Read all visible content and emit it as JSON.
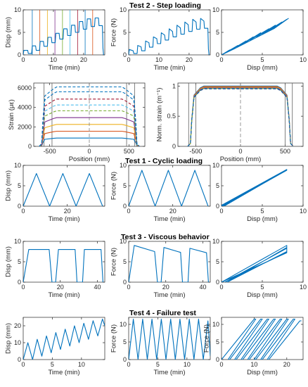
{
  "titles": {
    "test2": "Test 2 - Step loading",
    "test1": "Test 1 - Cyclic loading",
    "test3": "Test 3 - Viscous behavior",
    "test4": "Test 4 - Failure test"
  },
  "colors": {
    "line": "#0072BD",
    "axis": "#262626"
  },
  "chart_data": [
    {
      "id": "t2-disp",
      "type": "line",
      "xlabel": "Time (min)",
      "ylabel": "Disp (mm)",
      "xlim": [
        0,
        27
      ],
      "ylim": [
        0,
        10
      ],
      "xticks": [
        0,
        10,
        20
      ],
      "yticks": [
        0,
        5,
        10
      ],
      "vlines": {
        "x": [
          3,
          5.5,
          8,
          10.5,
          13,
          15.5,
          18,
          20.5,
          23
        ],
        "colors": [
          "#0072BD",
          "#D95319",
          "#EDB120",
          "#7E2F8E",
          "#77AC30",
          "#4DBEEE",
          "#A2142F",
          "#0072BD",
          "#D95319"
        ]
      },
      "series": [
        {
          "x": [
            0,
            0.2,
            1.5,
            1.7,
            2.8,
            3,
            4.1,
            4.3,
            5.4,
            5.6,
            6.7,
            6.9,
            8,
            8.2,
            9.3,
            9.5,
            10.6,
            10.8,
            11.9,
            12.1,
            13.2,
            13.4,
            14.5,
            14.7,
            15.8,
            16,
            17.1,
            17.3,
            18.4,
            18.6,
            19.7,
            19.9,
            21,
            21.2,
            22.3,
            22.5,
            23.6,
            23.8,
            24.9,
            25.1,
            26.2,
            26.4,
            26.6
          ],
          "y": [
            0,
            1,
            1,
            0.3,
            0.3,
            2,
            2,
            1,
            1,
            3,
            3,
            1.9,
            1.9,
            3.9,
            3.9,
            2.7,
            2.7,
            4.8,
            4.8,
            3.5,
            3.5,
            5.8,
            5.8,
            4.3,
            4.3,
            6.6,
            6.6,
            5,
            5,
            7.4,
            7.4,
            5.7,
            5.7,
            8,
            8,
            6.3,
            6.3,
            8.2,
            8.2,
            6.5,
            6.5,
            1.5,
            0
          ]
        }
      ]
    },
    {
      "id": "t2-force",
      "type": "line",
      "xlabel": "Time (min)",
      "ylabel": "Force (N)",
      "xlim": [
        0,
        27
      ],
      "ylim": [
        0,
        10
      ],
      "xticks": [
        0,
        10,
        20
      ],
      "yticks": [
        0,
        5,
        10
      ],
      "series": [
        {
          "x": [
            0,
            0.2,
            1.5,
            1.7,
            2.8,
            3,
            4.1,
            4.3,
            5.4,
            5.6,
            6.7,
            6.9,
            8,
            8.2,
            9.3,
            9.5,
            10.6,
            10.8,
            11.9,
            12.1,
            13.2,
            13.4,
            14.5,
            14.7,
            15.8,
            16,
            17.1,
            17.3,
            18.4,
            18.6,
            19.7,
            19.9,
            21,
            21.2,
            22.3,
            22.5,
            23.6,
            23.8,
            24.9,
            25.1,
            26.2,
            26.4,
            26.6
          ],
          "y": [
            0,
            1.2,
            0.9,
            0.3,
            0.3,
            2.1,
            1.8,
            0.9,
            0.9,
            3.1,
            2.7,
            1.7,
            1.7,
            4,
            3.6,
            2.5,
            2.5,
            4.9,
            4.4,
            3.3,
            3.3,
            5.8,
            5.2,
            4,
            4,
            6.6,
            6,
            4.6,
            4.6,
            7.3,
            6.7,
            5.2,
            5.2,
            7.9,
            7.3,
            5.7,
            5.7,
            8.1,
            7.5,
            5.9,
            5.9,
            1.3,
            0
          ]
        }
      ]
    },
    {
      "id": "t2-fd",
      "type": "line",
      "xlabel": "Disp (mm)",
      "ylabel": "",
      "xlim": [
        0,
        10
      ],
      "ylim": [
        0,
        10
      ],
      "xticks": [
        0,
        5,
        10
      ],
      "yticks": [
        0,
        5,
        10
      ],
      "series": [
        {
          "x": [
            0,
            1,
            0.3,
            2,
            1,
            3,
            1.9,
            3.9,
            2.7,
            4.8,
            3.5,
            5.8,
            4.3,
            6.6,
            5,
            7.4,
            5.7,
            8,
            6.3,
            8.2,
            6.5,
            1.5,
            0
          ],
          "y": [
            0,
            1.1,
            0.3,
            2.1,
            0.9,
            3.1,
            1.7,
            4,
            2.5,
            4.9,
            3.3,
            5.8,
            4,
            6.6,
            4.6,
            7.3,
            5.2,
            7.9,
            5.7,
            8.1,
            5.9,
            1.3,
            0
          ]
        }
      ]
    },
    {
      "id": "strain",
      "type": "line",
      "xlabel": "Position (mm)",
      "ylabel": "Strain (με)",
      "xlim": [
        -700,
        700
      ],
      "ylim": [
        0,
        6500
      ],
      "xticks": [
        -500,
        0,
        500
      ],
      "yticks": [
        0,
        2000,
        4000,
        6000
      ],
      "profile": {
        "plateau_half_width": 450,
        "edge_x": 600
      },
      "vlines": {
        "x": [
          -570,
          -470,
          470,
          570
        ],
        "colors": [
          "#606060",
          "#606060",
          "#606060",
          "#606060"
        ]
      },
      "series": [
        {
          "plateau": 850,
          "color": "#0072BD",
          "dash": false
        },
        {
          "plateau": 1550,
          "color": "#D95319",
          "dash": false
        },
        {
          "plateau": 2250,
          "color": "#EDB120",
          "dash": false
        },
        {
          "plateau": 2950,
          "color": "#7E2F8E",
          "dash": false
        },
        {
          "plateau": 3650,
          "color": "#77AC30",
          "dash": true
        },
        {
          "plateau": 4250,
          "color": "#4DBEEE",
          "dash": true
        },
        {
          "plateau": 4850,
          "color": "#A2142F",
          "dash": true
        },
        {
          "plateau": 5600,
          "color": "#0072BD",
          "dash": true
        },
        {
          "plateau": 6100,
          "color": "#0072BD",
          "dash": true
        }
      ]
    },
    {
      "id": "norm-strain",
      "type": "line",
      "xlabel": "Position (mm)",
      "ylabel": "Norm. strain (m⁻¹)",
      "xlim": [
        -700,
        700
      ],
      "ylim": [
        0,
        1.05
      ],
      "xticks": [
        -500,
        0,
        500
      ],
      "yticks": [
        0,
        0.5,
        1
      ],
      "profile": {
        "plateau_half_width": 450,
        "edge_x": 560
      },
      "vlines": {
        "x": [
          -580,
          -500,
          500,
          580
        ],
        "colors": [
          "#606060",
          "#606060",
          "#606060",
          "#606060"
        ]
      },
      "series": [
        {
          "plateau": 1,
          "color": "#0072BD",
          "dash": false
        },
        {
          "plateau": 0.99,
          "color": "#D95319",
          "dash": false
        },
        {
          "plateau": 0.98,
          "color": "#EDB120",
          "dash": false
        },
        {
          "plateau": 0.97,
          "color": "#7E2F8E",
          "dash": false
        },
        {
          "plateau": 0.96,
          "color": "#77AC30",
          "dash": false
        },
        {
          "plateau": 0.95,
          "color": "#4DBEEE",
          "dash": true
        },
        {
          "plateau": 0.955,
          "color": "#A2142F",
          "dash": true
        },
        {
          "plateau": 0.96,
          "color": "#0072BD",
          "dash": true
        }
      ]
    },
    {
      "id": "t1-disp",
      "type": "line",
      "xlabel": "Time (min)",
      "ylabel": "Disp (mm)",
      "xlim": [
        0,
        37
      ],
      "ylim": [
        0,
        10
      ],
      "xticks": [
        0,
        20
      ],
      "yticks": [
        0,
        5,
        10
      ],
      "series": [
        {
          "x": [
            0,
            6,
            12,
            18,
            24,
            30,
            36
          ],
          "y": [
            0,
            8,
            0,
            8,
            0,
            8,
            0
          ]
        }
      ]
    },
    {
      "id": "t1-force",
      "type": "line",
      "xlabel": "Time (min)",
      "ylabel": "Force (N)",
      "xlim": [
        0,
        37
      ],
      "ylim": [
        0,
        10
      ],
      "xticks": [
        0,
        20
      ],
      "yticks": [
        0,
        5,
        10
      ],
      "series": [
        {
          "x": [
            0,
            6,
            12,
            18,
            24,
            30,
            36
          ],
          "y": [
            0,
            8.8,
            0,
            8.8,
            0,
            8.8,
            0
          ]
        }
      ]
    },
    {
      "id": "t1-fd",
      "type": "line",
      "xlabel": "Disp (mm)",
      "ylabel": "",
      "xlim": [
        0,
        10
      ],
      "ylim": [
        0,
        10
      ],
      "xticks": [
        0,
        5,
        10
      ],
      "yticks": [
        0,
        5,
        10
      ],
      "series": [
        {
          "x": [
            0,
            8,
            0.4,
            8,
            0.2,
            8,
            0
          ],
          "y": [
            0.2,
            9,
            0.1,
            8.9,
            0.05,
            8.8,
            0
          ]
        }
      ]
    },
    {
      "id": "t3-disp",
      "type": "line",
      "xlabel": "Time (min)",
      "ylabel": "Disp (mm)",
      "xlim": [
        0,
        44
      ],
      "ylim": [
        0,
        10
      ],
      "xticks": [
        0,
        20,
        40
      ],
      "yticks": [
        0,
        5,
        10
      ],
      "series": [
        {
          "x": [
            0,
            3,
            14,
            15.5,
            17.5,
            19,
            28,
            29,
            32,
            33,
            42,
            43
          ],
          "y": [
            0,
            8,
            8,
            0,
            0,
            8,
            8,
            0,
            0,
            8,
            8,
            0
          ]
        }
      ]
    },
    {
      "id": "t3-force",
      "type": "line",
      "xlabel": "Time (min)",
      "ylabel": "Force (N)",
      "xlim": [
        0,
        44
      ],
      "ylim": [
        0,
        10
      ],
      "xticks": [
        0,
        20,
        40
      ],
      "yticks": [
        0,
        5,
        10
      ],
      "series": [
        {
          "x": [
            0,
            3,
            14,
            15.5,
            17.5,
            19,
            28,
            29,
            32,
            33,
            42,
            43
          ],
          "y": [
            0,
            9,
            7.5,
            0,
            0,
            8.5,
            7.3,
            0,
            0,
            8.3,
            7.2,
            0
          ]
        }
      ]
    },
    {
      "id": "t3-fd",
      "type": "line",
      "xlabel": "Disp (mm)",
      "ylabel": "",
      "xlim": [
        0,
        10
      ],
      "ylim": [
        0,
        10
      ],
      "xticks": [
        0,
        5,
        10
      ],
      "yticks": [
        0,
        5,
        10
      ],
      "series": [
        {
          "x": [
            0,
            8,
            8,
            0.7,
            0.7,
            8,
            8,
            0.4,
            0.4,
            8,
            8,
            0
          ],
          "y": [
            0,
            9,
            7.5,
            0,
            0,
            8.5,
            7.3,
            0,
            0,
            8.3,
            7.2,
            0
          ]
        }
      ]
    },
    {
      "id": "t4-disp",
      "type": "line",
      "xlabel": "Time (min)",
      "ylabel": "Disp (mm)",
      "xlim": [
        0,
        14
      ],
      "ylim": [
        0,
        25
      ],
      "xticks": [
        0,
        5,
        10
      ],
      "yticks": [
        0,
        10,
        20
      ],
      "series": [
        {
          "x": [
            0,
            0.8,
            1.6,
            2.4,
            3.2,
            4,
            4.8,
            5.6,
            6.4,
            7.2,
            8,
            8.8,
            9.6,
            10.4,
            11.2,
            12,
            12.8,
            13.6,
            14
          ],
          "y": [
            0,
            10,
            0,
            12,
            2,
            14,
            4,
            16,
            6,
            18,
            8,
            20,
            10,
            21.5,
            12,
            23,
            14,
            24,
            20
          ]
        }
      ]
    },
    {
      "id": "t4-force",
      "type": "line",
      "xlabel": "Time (min)",
      "ylabel": "Force (N)",
      "xlim": [
        0,
        14
      ],
      "ylim": [
        0,
        12
      ],
      "xticks": [
        0,
        5,
        10
      ],
      "yticks": [
        0,
        5,
        10
      ],
      "series": [
        {
          "x": [
            0,
            0.8,
            1.6,
            2.4,
            3.2,
            4,
            4.8,
            5.6,
            6.4,
            7.2,
            8,
            8.8,
            9.6,
            10.4,
            11.2,
            12,
            12.8,
            13.6,
            14
          ],
          "y": [
            0,
            11.5,
            0,
            11.5,
            0,
            11.5,
            0,
            11.5,
            0,
            11.5,
            0,
            11.5,
            0,
            11.5,
            0,
            11.5,
            0,
            11,
            1
          ]
        }
      ]
    },
    {
      "id": "t4-fd",
      "type": "line",
      "xlabel": "Disp (mm)",
      "ylabel": "Force (N)",
      "xlim": [
        0,
        25
      ],
      "ylim": [
        0,
        12
      ],
      "xticks": [
        0,
        10,
        20
      ],
      "yticks": [
        0,
        5,
        10
      ],
      "series": [
        {
          "x": [
            0,
            10,
            10.5,
            2,
            2.5,
            12,
            12.5,
            4,
            4.5,
            14,
            14.5,
            6,
            6.5,
            16,
            16.5,
            8,
            8.5,
            18,
            18.5,
            10,
            10.5,
            20,
            20.5,
            12,
            12.5,
            22,
            22.5,
            14,
            14.5,
            24,
            24.5
          ],
          "y": [
            0,
            11.5,
            11.5,
            0,
            0,
            11.5,
            11.5,
            0,
            0,
            11.5,
            11.5,
            0,
            0,
            11.5,
            11.5,
            0,
            0,
            11.5,
            11.5,
            0,
            0,
            11.5,
            11.5,
            0,
            0,
            11.5,
            11.5,
            0,
            0,
            11,
            11
          ]
        }
      ]
    }
  ]
}
